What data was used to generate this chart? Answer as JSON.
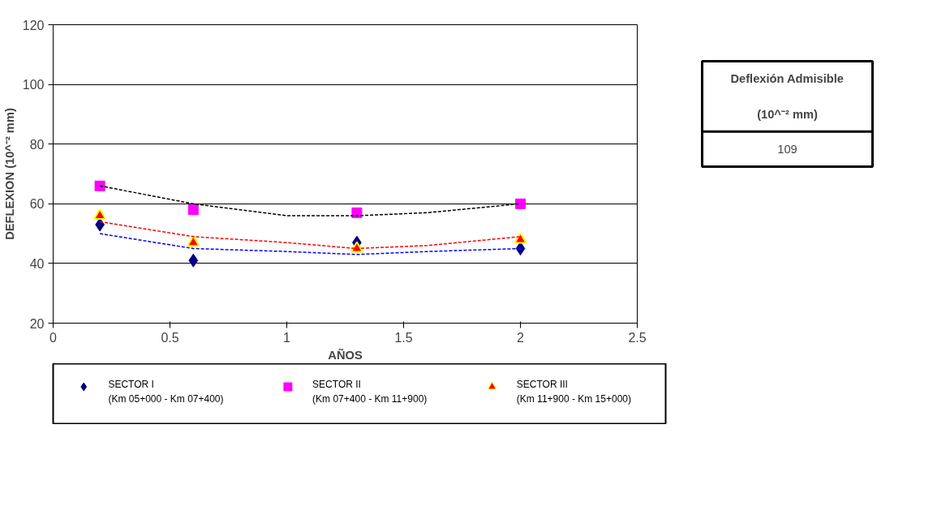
{
  "chart_data": [
    {
      "type": "scatter",
      "xlabel": "AÑOS",
      "ylabel": "DEFLEXION (10^⁻² mm)",
      "xlim": [
        0,
        2.5
      ],
      "xticks": [
        0,
        0.5,
        1,
        1.5,
        2,
        2.5
      ],
      "ylim": [
        20,
        120
      ],
      "yticks": [
        20,
        40,
        60,
        80,
        100,
        120
      ],
      "grid": "y",
      "legend": "bottom",
      "series": [
        {
          "name": "SECTOR I\n(Km 05+000 -  Km 07+400)",
          "color": "#000080",
          "marker": "diamond",
          "x": [
            0.2,
            0.6,
            1.3,
            2.0
          ],
          "values": [
            53,
            41,
            47,
            45
          ]
        },
        {
          "name": "SECTOR II\n(Km 07+400 -  Km 11+900)",
          "color": "#ff00ff",
          "marker": "square",
          "x": [
            0.2,
            0.6,
            1.3,
            2.0
          ],
          "values": [
            66,
            58,
            57,
            60
          ]
        },
        {
          "name": "SECTOR III\n(Km 11+900 -  Km 15+000)",
          "color": "#ff0000",
          "marker": "triangle",
          "x": [
            0.2,
            0.6,
            1.3,
            2.0
          ],
          "values": [
            56,
            47,
            45,
            48
          ]
        },
        {
          "type": "line",
          "line_style": "dashed",
          "color": "#0000ff",
          "x": [
            0.2,
            0.6,
            1.0,
            1.3,
            1.6,
            2.0
          ],
          "values": [
            50,
            45,
            44,
            43,
            44,
            45
          ]
        },
        {
          "type": "line",
          "line_style": "dashed",
          "color": "#000000",
          "x": [
            0.2,
            0.6,
            1.0,
            1.3,
            1.6,
            2.0
          ],
          "values": [
            66,
            60,
            56,
            56,
            57,
            60
          ]
        },
        {
          "type": "line",
          "line_style": "dashed",
          "color": "#ff0000",
          "x": [
            0.2,
            0.6,
            1.0,
            1.3,
            1.6,
            2.0
          ],
          "values": [
            54,
            49,
            47,
            45,
            46,
            49
          ]
        }
      ]
    },
    {
      "type": "other",
      "title": "Deflexión Admisible",
      "annotations": [
        "(10^⁻² mm)",
        "109"
      ]
    }
  ]
}
